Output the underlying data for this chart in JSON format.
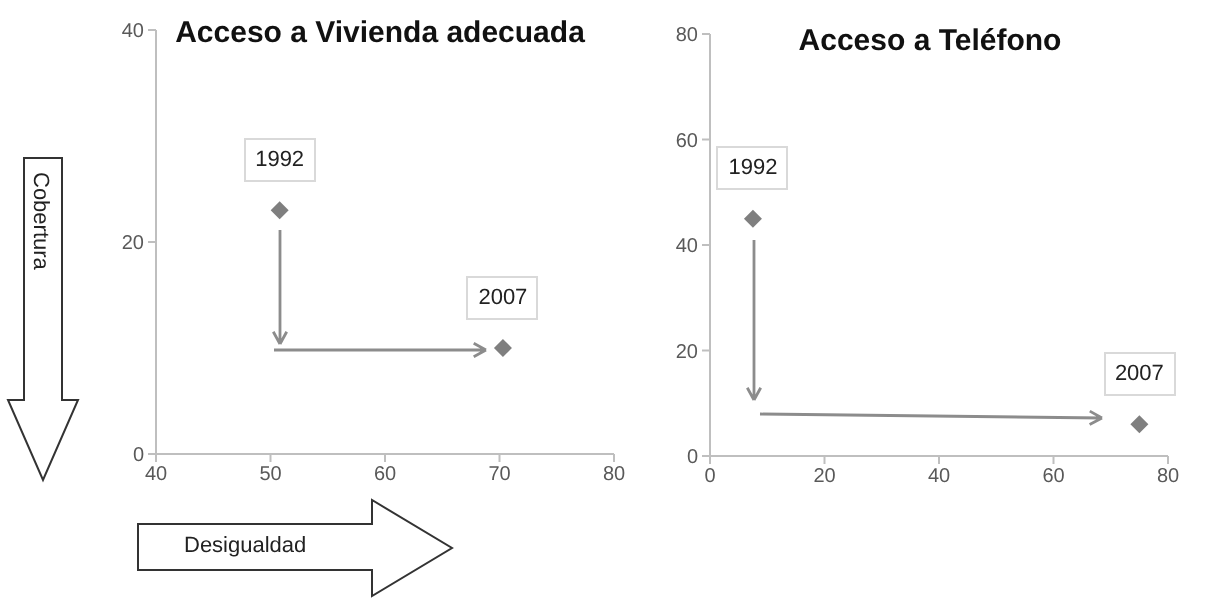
{
  "chart_data": [
    {
      "type": "scatter",
      "title": "Acceso a Vivienda adecuada",
      "xlabel": "Desigualdad",
      "ylabel": "Cobertura",
      "x": [
        50.8,
        70.3
      ],
      "values": [
        23,
        10
      ],
      "color": "#7f7f7f",
      "marker": "diamond",
      "xlim": [
        40,
        80
      ],
      "xticks": [
        40,
        50,
        60,
        70,
        80
      ],
      "ylim": [
        0,
        40
      ],
      "yticks": [
        0,
        20,
        40
      ],
      "grid": false,
      "legend": false,
      "annotations": [
        {
          "text": "1992",
          "x": 50.8,
          "y": 23
        },
        {
          "text": "2007",
          "x": 70.3,
          "y": 10
        }
      ]
    },
    {
      "type": "scatter",
      "title": "Acceso a Teléfono",
      "x": [
        7.5,
        75
      ],
      "values": [
        45,
        6
      ],
      "color": "#7f7f7f",
      "marker": "diamond",
      "xlim": [
        0,
        80
      ],
      "xticks": [
        0,
        20,
        40,
        60,
        80
      ],
      "ylim": [
        0,
        80
      ],
      "yticks": [
        0,
        20,
        40,
        60,
        80
      ],
      "grid": false,
      "legend": false,
      "annotations": [
        {
          "text": "1992",
          "x": 7.5,
          "y": 45
        },
        {
          "text": "2007",
          "x": 75,
          "y": 6
        }
      ]
    }
  ]
}
